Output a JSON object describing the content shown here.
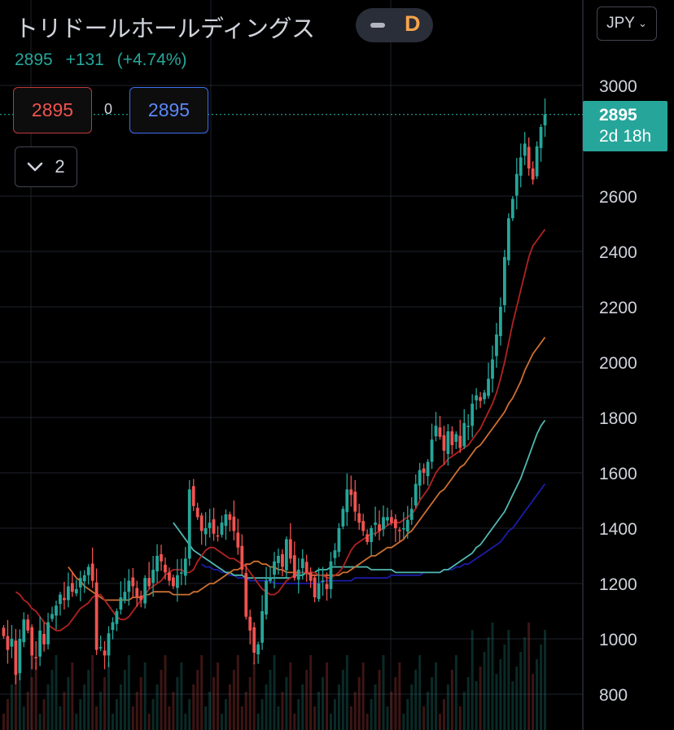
{
  "header": {
    "symbol_name": "トリドールホールディングス",
    "interval": "D",
    "currency": "JPY",
    "last_price": "2895",
    "change": "+131",
    "change_pct": "(+4.74%)"
  },
  "trade": {
    "sell_price": "2895",
    "spread": "0",
    "buy_price": "2895"
  },
  "indicators_toggle": {
    "count": "2"
  },
  "price_tag": {
    "price": "2895",
    "countdown": "2d 18h"
  },
  "colors": {
    "up": "#26a69a",
    "down": "#ef5350",
    "ma_short": "#b22222",
    "ma_mid": "#cd6f32",
    "ma_long": "#4fb8b0",
    "ma_longest": "#1c1ca8",
    "accent": "#f7a34b"
  },
  "chart_data": {
    "type": "candlestick",
    "y_ticks": [
      "3000",
      "2600",
      "2400",
      "2200",
      "2000",
      "1800",
      "1600",
      "1400",
      "1200",
      "1000",
      "800"
    ],
    "y_tick_values": [
      3000,
      2600,
      2400,
      2200,
      2000,
      1800,
      1600,
      1400,
      1200,
      1000,
      800
    ],
    "ylim": [
      740,
      3110
    ],
    "last": 2895,
    "closes": [
      1010,
      960,
      1000,
      870,
      1000,
      1070,
      1030,
      940,
      930,
      1030,
      980,
      1060,
      1090,
      1120,
      1160,
      1140,
      1190,
      1170,
      1180,
      1220,
      1230,
      1260,
      1210,
      960,
      970,
      940,
      1020,
      1060,
      1100,
      1150,
      1170,
      1210,
      1190,
      1150,
      1140,
      1220,
      1190,
      1250,
      1300,
      1280,
      1240,
      1210,
      1190,
      1230,
      1240,
      1290,
      1540,
      1480,
      1440,
      1390,
      1400,
      1420,
      1380,
      1370,
      1420,
      1450,
      1430,
      1390,
      1330,
      1250,
      1080,
      1030,
      950,
      980,
      1100,
      1210,
      1220,
      1280,
      1300,
      1260,
      1360,
      1290,
      1220,
      1250,
      1290,
      1240,
      1210,
      1150,
      1200,
      1210,
      1180,
      1280,
      1320,
      1400,
      1470,
      1540,
      1520,
      1460,
      1420,
      1390,
      1350,
      1400,
      1420,
      1390,
      1440,
      1440,
      1420,
      1400,
      1390,
      1400,
      1430,
      1470,
      1560,
      1610,
      1600,
      1640,
      1720,
      1770,
      1730,
      1680,
      1750,
      1700,
      1740,
      1690,
      1780,
      1770,
      1850,
      1880,
      1860,
      1890,
      1940,
      2010,
      2100,
      2200,
      2380,
      2520,
      2590,
      2680,
      2740,
      2790,
      2700,
      2660,
      2780,
      2850,
      2895
    ],
    "ma_short": [
      1170,
      1160,
      1140,
      1130,
      1110,
      1100,
      1080,
      1060,
      1050,
      1040,
      1030,
      1030,
      1040,
      1050,
      1070,
      1090,
      1110,
      1120,
      1130,
      1150,
      1160,
      1160,
      1140,
      1120,
      1100,
      1080,
      1070,
      1070,
      1080,
      1100,
      1120,
      1140,
      1160,
      1180,
      1190,
      1200,
      1210,
      1230,
      1240,
      1250,
      1250,
      1250,
      1240,
      1240,
      1250,
      1280,
      1300,
      1320,
      1330,
      1330,
      1320,
      1310,
      1300,
      1290,
      1290,
      1280,
      1270,
      1260,
      1240,
      1220,
      1200,
      1180,
      1170,
      1160,
      1160,
      1170,
      1190,
      1210,
      1220,
      1230,
      1240,
      1240,
      1240,
      1240,
      1240,
      1230,
      1230,
      1220,
      1220,
      1230,
      1240,
      1260,
      1290,
      1320,
      1340,
      1350,
      1360,
      1370,
      1380,
      1380,
      1390,
      1400,
      1410,
      1420,
      1420,
      1420,
      1430,
      1440,
      1450,
      1470,
      1500,
      1520,
      1540,
      1570,
      1600,
      1620,
      1630,
      1650,
      1660,
      1670,
      1680,
      1690,
      1700,
      1720,
      1740,
      1760,
      1790,
      1820,
      1850,
      1890,
      1940,
      2000,
      2070,
      2140,
      2200,
      2260,
      2320,
      2380,
      2420,
      2440,
      2460,
      2480
    ],
    "ma_mid": [
      1260,
      1240,
      1220,
      1210,
      1190,
      1180,
      1170,
      1160,
      1150,
      1140,
      1140,
      1140,
      1140,
      1140,
      1140,
      1140,
      1150,
      1150,
      1150,
      1160,
      1160,
      1170,
      1170,
      1170,
      1170,
      1170,
      1160,
      1160,
      1160,
      1160,
      1160,
      1170,
      1170,
      1180,
      1190,
      1200,
      1200,
      1210,
      1220,
      1230,
      1240,
      1250,
      1250,
      1260,
      1270,
      1270,
      1280,
      1280,
      1270,
      1270,
      1260,
      1260,
      1250,
      1250,
      1240,
      1240,
      1240,
      1240,
      1240,
      1240,
      1230,
      1230,
      1230,
      1230,
      1230,
      1230,
      1230,
      1230,
      1240,
      1240,
      1250,
      1260,
      1270,
      1280,
      1290,
      1300,
      1300,
      1310,
      1320,
      1330,
      1330,
      1340,
      1350,
      1360,
      1380,
      1390,
      1410,
      1430,
      1450,
      1470,
      1490,
      1510,
      1530,
      1540,
      1560,
      1580,
      1600,
      1620,
      1630,
      1650,
      1670,
      1690,
      1700,
      1720,
      1740,
      1760,
      1780,
      1800,
      1820,
      1850,
      1870,
      1900,
      1930,
      1970,
      2000,
      2030,
      2050,
      2070,
      2090
    ],
    "ma_long": [
      1420,
      1400,
      1380,
      1360,
      1340,
      1320,
      1310,
      1300,
      1290,
      1280,
      1270,
      1260,
      1250,
      1240,
      1240,
      1230,
      1230,
      1230,
      1220,
      1220,
      1220,
      1220,
      1220,
      1220,
      1220,
      1220,
      1220,
      1220,
      1220,
      1220,
      1230,
      1230,
      1230,
      1240,
      1240,
      1240,
      1250,
      1250,
      1250,
      1260,
      1260,
      1260,
      1260,
      1260,
      1260,
      1260,
      1260,
      1260,
      1260,
      1250,
      1250,
      1250,
      1250,
      1250,
      1250,
      1240,
      1240,
      1240,
      1240,
      1240,
      1240,
      1240,
      1240,
      1240,
      1240,
      1240,
      1240,
      1250,
      1250,
      1260,
      1270,
      1280,
      1290,
      1300,
      1310,
      1330,
      1340,
      1360,
      1380,
      1400,
      1420,
      1440,
      1460,
      1490,
      1520,
      1550,
      1580,
      1620,
      1660,
      1700,
      1740,
      1770,
      1790
    ],
    "ma_longest": [
      1270,
      1260,
      1260,
      1250,
      1250,
      1240,
      1240,
      1230,
      1230,
      1220,
      1220,
      1220,
      1210,
      1210,
      1210,
      1210,
      1210,
      1210,
      1200,
      1200,
      1200,
      1200,
      1200,
      1200,
      1200,
      1200,
      1200,
      1200,
      1200,
      1200,
      1210,
      1210,
      1210,
      1210,
      1210,
      1210,
      1210,
      1210,
      1220,
      1220,
      1220,
      1220,
      1220,
      1220,
      1220,
      1220,
      1220,
      1230,
      1230,
      1230,
      1230,
      1230,
      1230,
      1230,
      1230,
      1240,
      1240,
      1240,
      1240,
      1240,
      1250,
      1250,
      1250,
      1260,
      1260,
      1270,
      1270,
      1280,
      1290,
      1300,
      1310,
      1320,
      1330,
      1340,
      1350,
      1370,
      1390,
      1400,
      1420,
      1440,
      1460,
      1480,
      1500,
      1520,
      1540,
      1560
    ]
  }
}
